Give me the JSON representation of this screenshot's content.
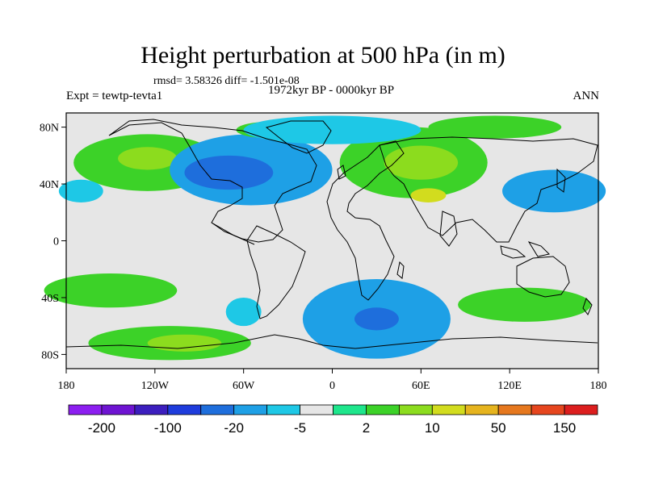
{
  "figure": {
    "title": "Height perturbation at 500 hPa (in m)",
    "stats": "rmsd= 3.58326 diff= -1.501e-08",
    "subtitle": "1972kyr BP - 0000kyr BP",
    "experiment": "Expt = tewtp-tevta1",
    "season": "ANN"
  },
  "axes": {
    "lat_ticks": [
      {
        "label": "80N",
        "lat": 80
      },
      {
        "label": "40N",
        "lat": 40
      },
      {
        "label": "0",
        "lat": 0
      },
      {
        "label": "40S",
        "lat": -40
      },
      {
        "label": "80S",
        "lat": -80
      }
    ],
    "lon_ticks": [
      {
        "label": "180",
        "lon": -180
      },
      {
        "label": "120W",
        "lon": -120
      },
      {
        "label": "60W",
        "lon": -60
      },
      {
        "label": "0",
        "lon": 0
      },
      {
        "label": "60E",
        "lon": 60
      },
      {
        "label": "120E",
        "lon": 120
      },
      {
        "label": "180",
        "lon": 180
      }
    ],
    "lon_range": [
      -180,
      180
    ],
    "lat_range": [
      -90,
      90
    ]
  },
  "colorbar": {
    "colors": [
      "#8c1ef0",
      "#6e14d2",
      "#3c1ebe",
      "#1e3cdc",
      "#1e6edc",
      "#1ea0e6",
      "#1ec8e6",
      "#e6e6e6",
      "#1ee68c",
      "#3cd228",
      "#8cdc1e",
      "#d2dc1e",
      "#e6b41e",
      "#e6781e",
      "#e6461e",
      "#dc1e1e"
    ],
    "labels": [
      "-200",
      "-100",
      "-20",
      "-5",
      "2",
      "10",
      "50",
      "150"
    ]
  },
  "palette": {
    "neutral": "#e6e6e6",
    "light_blue": "#1ec8e6",
    "mid_blue": "#1ea0e6",
    "blue": "#1e6edc",
    "light_green": "#1ee68c",
    "green": "#3cd228",
    "yellow_green": "#8cdc1e",
    "yellow": "#d2dc1e"
  },
  "fields": [
    {
      "name": "north-pacific-positive",
      "level": "green",
      "lon": -125,
      "lat": 55,
      "rlon": 50,
      "rlat": 20
    },
    {
      "name": "north-pacific-positive-core",
      "level": "yellow_green",
      "lon": -125,
      "lat": 58,
      "rlon": 20,
      "rlat": 8
    },
    {
      "name": "north-atlantic-negative",
      "level": "mid_blue",
      "lon": -55,
      "lat": 50,
      "rlon": 55,
      "rlat": 25
    },
    {
      "name": "north-atlantic-negative-core",
      "level": "blue",
      "lon": -70,
      "lat": 48,
      "rlon": 30,
      "rlat": 12
    },
    {
      "name": "greenland-positive",
      "level": "green",
      "lon": -40,
      "lat": 78,
      "rlon": 25,
      "rlat": 6
    },
    {
      "name": "eurasia-positive",
      "level": "green",
      "lon": 55,
      "lat": 55,
      "rlon": 50,
      "rlat": 25
    },
    {
      "name": "eurasia-positive-core",
      "level": "yellow_green",
      "lon": 60,
      "lat": 55,
      "rlon": 25,
      "rlat": 12
    },
    {
      "name": "central-asia-core",
      "level": "yellow",
      "lon": 65,
      "lat": 32,
      "rlon": 12,
      "rlat": 5
    },
    {
      "name": "siberia-positive",
      "level": "green",
      "lon": 110,
      "lat": 80,
      "rlon": 45,
      "rlat": 8
    },
    {
      "name": "north-pacific-west-negative",
      "level": "mid_blue",
      "lon": 150,
      "lat": 35,
      "rlon": 35,
      "rlat": 15
    },
    {
      "name": "west-pacific-negative",
      "level": "light_blue",
      "lon": -170,
      "lat": 35,
      "rlon": 15,
      "rlat": 8
    },
    {
      "name": "arctic-negative",
      "level": "light_blue",
      "lon": 0,
      "lat": 78,
      "rlon": 60,
      "rlat": 10
    },
    {
      "name": "south-pacific-positive",
      "level": "green",
      "lon": -150,
      "lat": -35,
      "rlon": 45,
      "rlat": 12
    },
    {
      "name": "southern-ocean-negative",
      "level": "mid_blue",
      "lon": 30,
      "lat": -55,
      "rlon": 50,
      "rlat": 28
    },
    {
      "name": "southern-ocean-negative-core",
      "level": "blue",
      "lon": 30,
      "lat": -55,
      "rlon": 15,
      "rlat": 8
    },
    {
      "name": "south-indian-positive",
      "level": "green",
      "lon": 130,
      "lat": -45,
      "rlon": 45,
      "rlat": 12
    },
    {
      "name": "antarctic-pacific-positive",
      "level": "green",
      "lon": -110,
      "lat": -72,
      "rlon": 55,
      "rlat": 12
    },
    {
      "name": "antarctic-pacific-core",
      "level": "yellow_green",
      "lon": -100,
      "lat": -72,
      "rlon": 25,
      "rlat": 6
    },
    {
      "name": "south-america-negative",
      "level": "light_blue",
      "lon": -60,
      "lat": -50,
      "rlon": 12,
      "rlat": 10
    }
  ]
}
